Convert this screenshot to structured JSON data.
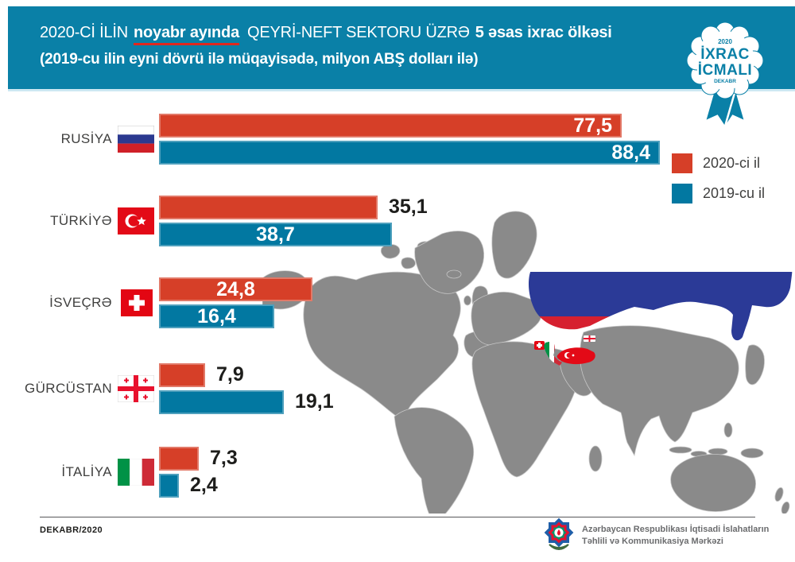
{
  "header": {
    "line1_prefix": "2020-Cİ İLİN",
    "line1_highlight": "noyabr ayında",
    "line1_mid": "QEYRİ-NEFT SEKTORU ÜZRƏ",
    "line1_bold": "5 əsas ixrac ölkəsi",
    "line2": "(2019-cu ilin eyni dövrü ilə müqayisədə, milyon ABŞ dolları ilə)",
    "band_color": "#0a80a7",
    "highlight_underline_color": "#e0281e"
  },
  "badge": {
    "year": "2020",
    "line1": "İXRAC",
    "line2": "İCMALI",
    "month": "DEKABR",
    "color": "#0a80a7"
  },
  "legend": {
    "items": [
      {
        "label": "2020-ci il",
        "color": "#d63f28"
      },
      {
        "label": "2019-cu il",
        "color": "#0278a1"
      }
    ]
  },
  "chart_data": {
    "type": "bar",
    "orientation": "horizontal",
    "title": "2020-ci ilin noyabr ayında qeyri-neft sektoru üzrə 5 əsas ixrac ölkəsi",
    "subtitle": "2019-cu ilin eyni dövrü ilə müqayisədə",
    "unit": "milyon ABŞ dolları",
    "categories": [
      "RUSİYA",
      "TÜRKİYƏ",
      "İSVEÇRƏ",
      "GÜRCÜSTAN",
      "İTALİYA"
    ],
    "flags": [
      "ru",
      "tr",
      "ch",
      "ge",
      "it"
    ],
    "series": [
      {
        "name": "2020-ci il",
        "color": "#d63f28",
        "values": [
          77.5,
          35.1,
          24.8,
          7.9,
          7.3
        ],
        "display": [
          "77,5",
          "35,1",
          "24,8",
          "7,9",
          "7,3"
        ]
      },
      {
        "name": "2019-cu il",
        "color": "#0278a1",
        "values": [
          88.4,
          38.7,
          16.4,
          19.1,
          2.4
        ],
        "display": [
          "88,4",
          "38,7",
          "16,4",
          "19,1",
          "2,4"
        ]
      }
    ],
    "legend_position": "right",
    "grid": false
  },
  "map": {
    "base_color": "#8a8a8a",
    "highlighted_countries": [
      "Rusiya",
      "Türkiyə",
      "İsveçrə",
      "İtaliya",
      "Gürcüstan"
    ]
  },
  "footer": {
    "date": "DEKABR/2020",
    "org_line1": "Azərbaycan Respublikası İqtisadi İslahatların",
    "org_line2": "Təhlili və Kommunikasiya Mərkəzi"
  }
}
